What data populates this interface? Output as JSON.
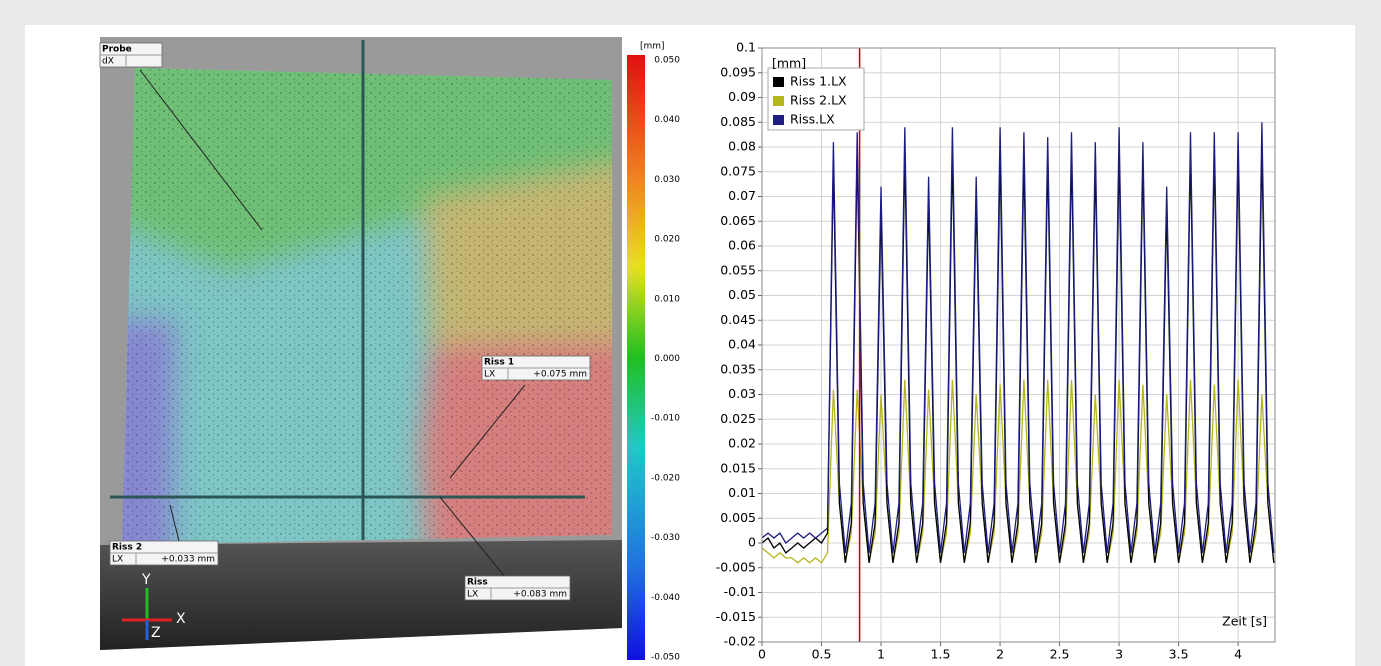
{
  "chart_data": {
    "type": "line",
    "x_label": "Zeit [s]",
    "y_unit": "[mm]",
    "x": [
      0,
      0.05,
      0.1,
      0.15,
      0.2,
      0.25,
      0.3,
      0.35,
      0.4,
      0.45,
      0.5,
      0.55,
      0.6,
      0.65,
      0.7,
      0.75,
      0.8,
      0.85,
      0.9,
      0.95,
      1,
      1.05,
      1.1,
      1.15,
      1.2,
      1.25,
      1.3,
      1.35,
      1.4,
      1.45,
      1.5,
      1.55,
      1.6,
      1.65,
      1.7,
      1.75,
      1.8,
      1.85,
      1.9,
      1.95,
      2,
      2.05,
      2.1,
      2.15,
      2.2,
      2.25,
      2.3,
      2.35,
      2.4,
      2.45,
      2.5,
      2.55,
      2.6,
      2.65,
      2.7,
      2.75,
      2.8,
      2.85,
      2.9,
      2.95,
      3,
      3.05,
      3.1,
      3.15,
      3.2,
      3.25,
      3.3,
      3.35,
      3.4,
      3.45,
      3.5,
      3.55,
      3.6,
      3.65,
      3.7,
      3.75,
      3.8,
      3.85,
      3.9,
      3.95,
      4,
      4.05,
      4.1,
      4.15,
      4.2,
      4.25,
      4.3
    ],
    "series": [
      {
        "name": "Riss 1.LX",
        "color": "#000000",
        "values": [
          0,
          0.001,
          -0.001,
          0,
          -0.002,
          -0.001,
          0,
          -0.001,
          0,
          0.001,
          0,
          0.002,
          0.077,
          0.008,
          -0.004,
          0.004,
          0.079,
          0.008,
          -0.004,
          0.004,
          0.068,
          0.008,
          -0.004,
          0.004,
          0.079,
          0.008,
          -0.004,
          0.004,
          0.07,
          0.008,
          -0.004,
          0.004,
          0.079,
          0.008,
          -0.004,
          0.004,
          0.07,
          0.008,
          -0.004,
          0.004,
          0.079,
          0.008,
          -0.004,
          0.004,
          0.078,
          0.008,
          -0.004,
          0.004,
          0.078,
          0.008,
          -0.004,
          0.004,
          0.079,
          0.008,
          -0.004,
          0.004,
          0.077,
          0.008,
          -0.004,
          0.004,
          0.079,
          0.008,
          -0.004,
          0.004,
          0.077,
          0.008,
          -0.004,
          0.004,
          0.068,
          0.008,
          -0.004,
          0.004,
          0.079,
          0.008,
          -0.004,
          0.004,
          0.079,
          0.008,
          -0.004,
          0.004,
          0.079,
          0.008,
          -0.004,
          0.004,
          0.08,
          0.008,
          -0.004
        ]
      },
      {
        "name": "Riss 2.LX",
        "color": "#b5b51e",
        "values": [
          -0.001,
          -0.002,
          -0.003,
          -0.002,
          -0.003,
          -0.003,
          -0.004,
          -0.003,
          -0.004,
          -0.003,
          -0.004,
          -0.002,
          0.031,
          0.008,
          -0.004,
          0.002,
          0.031,
          0.008,
          -0.004,
          0.002,
          0.03,
          0.008,
          -0.004,
          0.002,
          0.033,
          0.008,
          -0.004,
          0.002,
          0.031,
          0.008,
          -0.004,
          0.002,
          0.033,
          0.008,
          -0.004,
          0.002,
          0.03,
          0.008,
          -0.004,
          0.002,
          0.032,
          0.008,
          -0.004,
          0.002,
          0.033,
          0.008,
          -0.004,
          0.002,
          0.033,
          0.008,
          -0.004,
          0.002,
          0.033,
          0.008,
          -0.004,
          0.002,
          0.03,
          0.008,
          -0.004,
          0.002,
          0.033,
          0.008,
          -0.004,
          0.002,
          0.032,
          0.008,
          -0.004,
          0.002,
          0.03,
          0.008,
          -0.004,
          0.002,
          0.033,
          0.008,
          -0.004,
          0.002,
          0.032,
          0.008,
          -0.004,
          0.002,
          0.033,
          0.008,
          -0.004,
          0.002,
          0.03,
          0.008,
          -0.004
        ]
      },
      {
        "name": "Riss.LX",
        "color": "#1c1c82",
        "values": [
          0.001,
          0.002,
          0.001,
          0.002,
          0,
          0.001,
          0.002,
          0.001,
          0.002,
          0.001,
          0.002,
          0.003,
          0.081,
          0.012,
          -0.002,
          0.008,
          0.083,
          0.012,
          -0.002,
          0.008,
          0.072,
          0.012,
          -0.002,
          0.008,
          0.084,
          0.012,
          -0.002,
          0.008,
          0.074,
          0.012,
          -0.002,
          0.008,
          0.084,
          0.012,
          -0.002,
          0.008,
          0.074,
          0.012,
          -0.002,
          0.008,
          0.084,
          0.012,
          -0.002,
          0.008,
          0.083,
          0.012,
          -0.002,
          0.008,
          0.082,
          0.012,
          -0.002,
          0.008,
          0.083,
          0.012,
          -0.002,
          0.008,
          0.081,
          0.012,
          -0.002,
          0.008,
          0.084,
          0.012,
          -0.002,
          0.008,
          0.081,
          0.012,
          -0.002,
          0.008,
          0.072,
          0.012,
          -0.002,
          0.008,
          0.083,
          0.012,
          -0.002,
          0.008,
          0.083,
          0.012,
          -0.002,
          0.008,
          0.083,
          0.012,
          -0.002,
          0.008,
          0.085,
          0.012,
          -0.002
        ]
      }
    ],
    "xlim": [
      0,
      4.31
    ],
    "xticks": [
      0,
      0.5,
      1,
      1.5,
      2,
      2.5,
      3,
      3.5,
      4
    ],
    "ylim": [
      -0.02,
      0.1
    ],
    "yticks": [
      -0.02,
      -0.015,
      -0.01,
      -0.005,
      0,
      0.005,
      0.01,
      0.015,
      0.02,
      0.025,
      0.03,
      0.035,
      0.04,
      0.045,
      0.05,
      0.055,
      0.06,
      0.065,
      0.07,
      0.075,
      0.08,
      0.085,
      0.09,
      0.095,
      0.1
    ],
    "grid": true,
    "legend": "upper left",
    "cursor_x": 0.82,
    "cursor_color": "#a01010"
  },
  "image_panel": {
    "annotations": [
      {
        "title": "Probe",
        "field": "dX"
      },
      {
        "title": "Riss 1",
        "field": "LX",
        "value": "+0.075 mm"
      },
      {
        "title": "Riss 2",
        "field": "LX",
        "value": "+0.033 mm"
      },
      {
        "title": "Riss",
        "field": "LX",
        "value": "+0.083 mm"
      }
    ],
    "colorbar": {
      "unit": "[mm]",
      "labels": [
        "0.050",
        "0.040",
        "0.030",
        "0.020",
        "0.010",
        "0.000",
        "-0.010",
        "-0.020",
        "-0.030",
        "-0.040",
        "-0.050"
      ]
    },
    "axes": {
      "x": "X",
      "y": "Y",
      "z": "Z"
    }
  }
}
